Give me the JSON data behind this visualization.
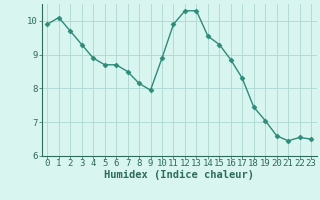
{
  "x": [
    0,
    1,
    2,
    3,
    4,
    5,
    6,
    7,
    8,
    9,
    10,
    11,
    12,
    13,
    14,
    15,
    16,
    17,
    18,
    19,
    20,
    21,
    22,
    23
  ],
  "y": [
    9.9,
    10.1,
    9.7,
    9.3,
    8.9,
    8.7,
    8.7,
    8.5,
    8.15,
    7.95,
    8.9,
    9.9,
    10.3,
    10.3,
    9.55,
    9.3,
    8.85,
    8.3,
    7.45,
    7.05,
    6.6,
    6.45,
    6.55,
    6.5
  ],
  "line_color": "#2e8b7a",
  "marker": "D",
  "marker_size": 2.5,
  "bg_color": "#d8f5f0",
  "grid_color": "#aed8d2",
  "xlabel": "Humidex (Indice chaleur)",
  "ylim": [
    6,
    10.5
  ],
  "xlim": [
    -0.5,
    23.5
  ],
  "yticks": [
    6,
    7,
    8,
    9,
    10
  ],
  "xticks": [
    0,
    1,
    2,
    3,
    4,
    5,
    6,
    7,
    8,
    9,
    10,
    11,
    12,
    13,
    14,
    15,
    16,
    17,
    18,
    19,
    20,
    21,
    22,
    23
  ],
  "tick_color": "#2e6b5a",
  "line_color_dark": "#1a5f50",
  "font_size": 6.5,
  "xlabel_fontsize": 7.5
}
